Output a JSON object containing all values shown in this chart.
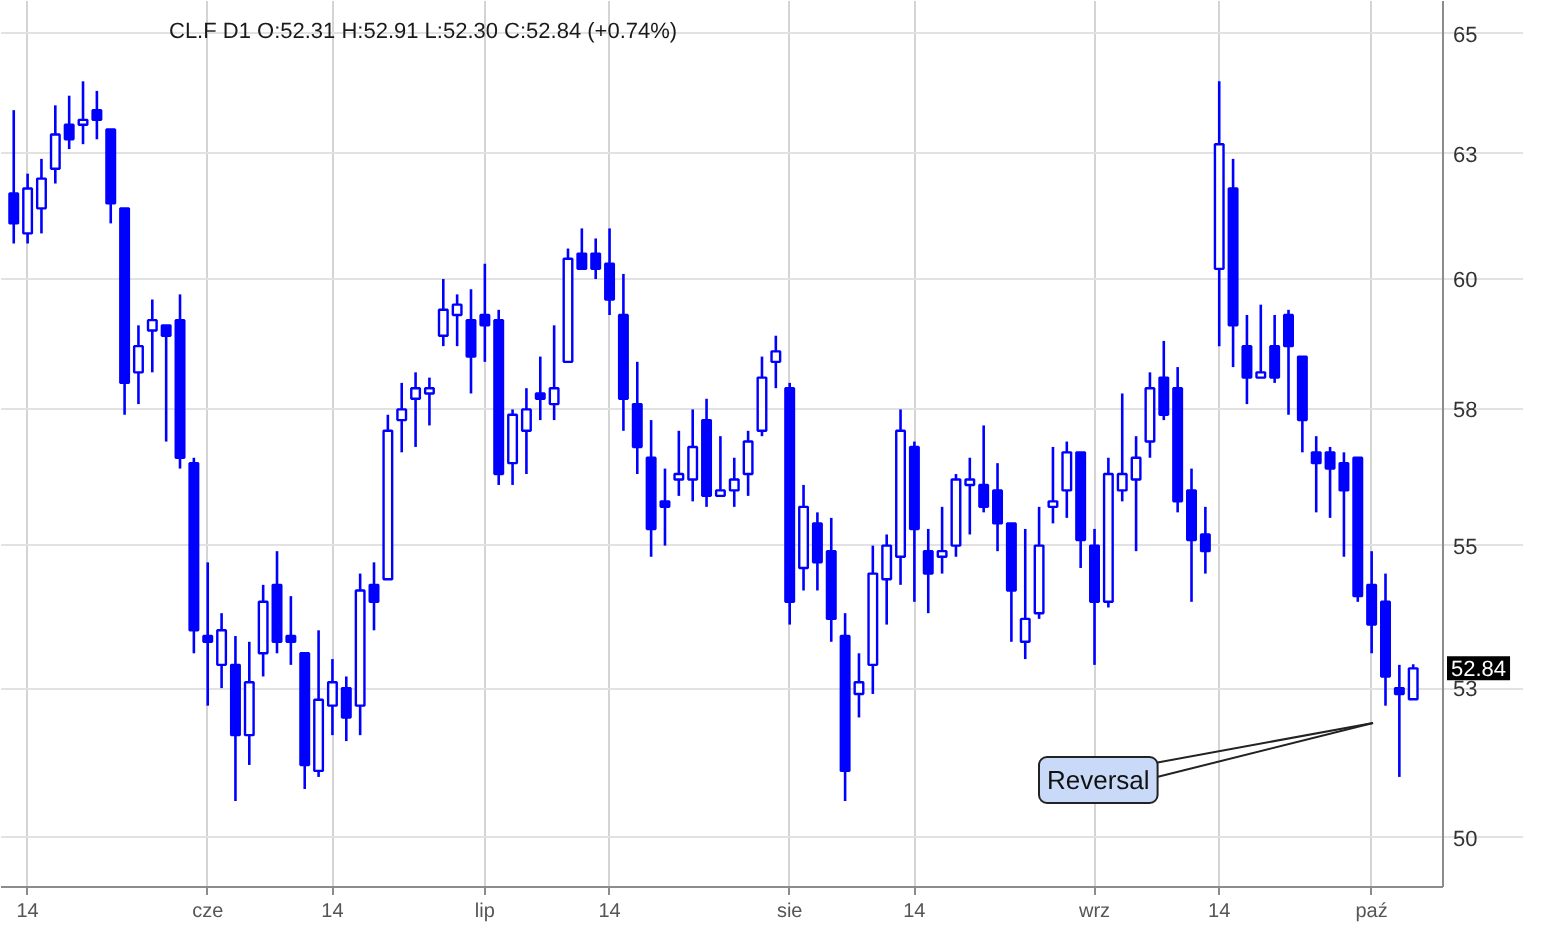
{
  "chart_data": {
    "type": "candlestick",
    "title": "CL.F  D1  O:52.31  H:52.91  L:52.30  C:52.84  (+0.74%)",
    "categories": [
      null,
      "14",
      null,
      null,
      null,
      null,
      null,
      null,
      null,
      null,
      null,
      null,
      null,
      null,
      "cze",
      null,
      null,
      null,
      null,
      null,
      null,
      null,
      null,
      "14",
      null,
      null,
      null,
      null,
      null,
      null,
      null,
      null,
      null,
      null,
      "lip",
      null,
      null,
      null,
      null,
      null,
      null,
      null,
      null,
      "14",
      null,
      null,
      null,
      null,
      null,
      null,
      null,
      null,
      null,
      null,
      null,
      null,
      "sie",
      null,
      null,
      null,
      null,
      null,
      null,
      null,
      null,
      "14",
      null,
      null,
      null,
      null,
      null,
      null,
      null,
      null,
      null,
      null,
      null,
      null,
      "wrz",
      null,
      null,
      null,
      null,
      null,
      null,
      null,
      null,
      "14",
      null,
      null,
      null,
      null,
      null,
      null,
      null,
      null,
      null,
      null,
      "paź",
      null,
      null,
      null
    ],
    "ohlc": [
      [
        61.7,
        63.4,
        60.7,
        61.1
      ],
      [
        60.9,
        62.1,
        60.7,
        61.8
      ],
      [
        61.4,
        62.4,
        60.9,
        62.0
      ],
      [
        62.2,
        63.5,
        61.9,
        62.9
      ],
      [
        63.1,
        63.7,
        62.6,
        62.8
      ],
      [
        63.1,
        64.0,
        62.7,
        63.2
      ],
      [
        63.4,
        63.8,
        62.8,
        63.2
      ],
      [
        63.0,
        63.0,
        61.1,
        61.5
      ],
      [
        61.4,
        61.4,
        57.4,
        58.0
      ],
      [
        58.2,
        59.1,
        57.6,
        58.7
      ],
      [
        59.0,
        59.6,
        58.2,
        59.2
      ],
      [
        59.1,
        59.1,
        56.9,
        58.9
      ],
      [
        59.2,
        59.7,
        56.4,
        56.6
      ],
      [
        56.5,
        56.6,
        53.1,
        53.5
      ],
      [
        53.4,
        54.7,
        52.2,
        53.3
      ],
      [
        52.9,
        53.8,
        52.5,
        53.5
      ],
      [
        52.9,
        53.4,
        50.6,
        51.7
      ],
      [
        51.7,
        53.3,
        51.2,
        52.6
      ],
      [
        53.1,
        54.3,
        52.7,
        54.0
      ],
      [
        54.3,
        54.9,
        53.1,
        53.3
      ],
      [
        53.4,
        54.1,
        52.9,
        53.3
      ],
      [
        53.1,
        53.1,
        50.8,
        51.2
      ],
      [
        51.1,
        53.5,
        51.0,
        52.3
      ],
      [
        52.2,
        53.0,
        51.7,
        52.6
      ],
      [
        52.5,
        52.7,
        51.6,
        52.0
      ],
      [
        52.2,
        54.5,
        51.7,
        54.2
      ],
      [
        54.3,
        54.7,
        53.5,
        54.0
      ],
      [
        54.4,
        57.4,
        54.4,
        57.1
      ],
      [
        57.3,
        58.0,
        56.7,
        57.5
      ],
      [
        57.7,
        58.2,
        56.8,
        57.9
      ],
      [
        57.8,
        58.1,
        57.2,
        57.9
      ],
      [
        58.9,
        60.0,
        58.7,
        59.4
      ],
      [
        59.3,
        59.7,
        58.7,
        59.5
      ],
      [
        59.2,
        59.8,
        57.8,
        58.5
      ],
      [
        59.3,
        60.3,
        58.4,
        59.1
      ],
      [
        59.2,
        59.4,
        56.1,
        56.3
      ],
      [
        56.5,
        57.5,
        56.1,
        57.4
      ],
      [
        57.1,
        57.9,
        56.3,
        57.5
      ],
      [
        57.8,
        58.5,
        57.3,
        57.7
      ],
      [
        57.6,
        59.1,
        57.3,
        57.9
      ],
      [
        58.4,
        60.6,
        58.4,
        60.4
      ],
      [
        60.5,
        61.0,
        60.2,
        60.2
      ],
      [
        60.5,
        60.8,
        60.0,
        60.2
      ],
      [
        60.3,
        61.0,
        59.3,
        59.6
      ],
      [
        59.3,
        60.1,
        57.1,
        57.7
      ],
      [
        57.6,
        58.4,
        56.3,
        56.8
      ],
      [
        56.6,
        57.3,
        54.8,
        55.3
      ],
      [
        55.8,
        56.4,
        55.0,
        55.7
      ],
      [
        56.2,
        57.1,
        55.9,
        56.3
      ],
      [
        56.2,
        57.5,
        55.8,
        56.8
      ],
      [
        57.3,
        57.7,
        55.7,
        55.9
      ],
      [
        55.9,
        57.0,
        55.9,
        56.0
      ],
      [
        56.0,
        56.6,
        55.7,
        56.2
      ],
      [
        56.3,
        57.1,
        55.9,
        56.9
      ],
      [
        57.1,
        58.5,
        57.0,
        58.1
      ],
      [
        58.4,
        58.9,
        57.9,
        58.6
      ],
      [
        57.9,
        58.0,
        53.6,
        54.0
      ],
      [
        54.6,
        56.1,
        54.2,
        55.7
      ],
      [
        55.4,
        55.6,
        54.2,
        54.7
      ],
      [
        54.9,
        55.5,
        53.3,
        53.7
      ],
      [
        53.4,
        53.8,
        50.6,
        51.1
      ],
      [
        52.4,
        53.1,
        52.0,
        52.6
      ],
      [
        52.9,
        55.0,
        52.4,
        54.5
      ],
      [
        54.4,
        55.2,
        53.6,
        55.0
      ],
      [
        54.8,
        57.5,
        54.3,
        57.1
      ],
      [
        56.8,
        56.9,
        54.0,
        55.3
      ],
      [
        54.9,
        55.3,
        53.8,
        54.5
      ],
      [
        54.8,
        55.7,
        54.5,
        54.9
      ],
      [
        55.0,
        56.3,
        54.8,
        56.2
      ],
      [
        56.1,
        56.6,
        55.2,
        56.2
      ],
      [
        56.1,
        57.2,
        55.6,
        55.7
      ],
      [
        56.0,
        56.5,
        54.9,
        55.4
      ],
      [
        55.4,
        55.4,
        53.3,
        54.2
      ],
      [
        53.3,
        55.3,
        53.0,
        53.7
      ],
      [
        53.8,
        55.7,
        53.7,
        55.0
      ],
      [
        55.7,
        56.8,
        55.4,
        55.8
      ],
      [
        56.0,
        56.9,
        55.5,
        56.7
      ],
      [
        56.7,
        56.7,
        54.6,
        55.1
      ],
      [
        55.0,
        55.3,
        52.9,
        54.0
      ],
      [
        54.0,
        56.6,
        53.9,
        56.3
      ],
      [
        56.0,
        57.8,
        55.8,
        56.3
      ],
      [
        56.2,
        57.0,
        54.9,
        56.6
      ],
      [
        56.9,
        58.2,
        56.6,
        57.9
      ],
      [
        58.1,
        58.8,
        57.3,
        57.4
      ],
      [
        57.9,
        58.3,
        55.6,
        55.8
      ],
      [
        56.0,
        56.4,
        54.0,
        55.1
      ],
      [
        55.2,
        55.7,
        54.5,
        54.9
      ],
      [
        60.2,
        64.0,
        58.7,
        62.7
      ],
      [
        61.8,
        62.4,
        58.3,
        59.1
      ],
      [
        58.7,
        59.3,
        57.6,
        58.1
      ],
      [
        58.1,
        59.5,
        58.1,
        58.2
      ],
      [
        58.7,
        59.3,
        58.0,
        58.1
      ],
      [
        59.3,
        59.4,
        57.4,
        58.7
      ],
      [
        58.5,
        58.5,
        56.7,
        57.3
      ],
      [
        56.7,
        57.0,
        55.6,
        56.5
      ],
      [
        56.7,
        56.8,
        55.5,
        56.4
      ],
      [
        56.5,
        56.7,
        54.8,
        56.0
      ],
      [
        56.6,
        56.6,
        54.0,
        54.1
      ],
      [
        54.3,
        54.9,
        53.1,
        53.6
      ],
      [
        54.0,
        54.5,
        52.2,
        52.7
      ],
      [
        52.5,
        52.9,
        51.0,
        52.4
      ],
      [
        52.31,
        52.91,
        52.3,
        52.84
      ]
    ],
    "color": "#0000ff",
    "log": true,
    "ylim": [
      49.2,
      65.7
    ],
    "yticks": [
      50,
      {
        "value": 52.5,
        "label": "53"
      },
      55,
      {
        "value": 57.5,
        "label": "58"
      },
      60,
      {
        "value": 62.5,
        "label": "63"
      },
      65
    ],
    "grid": true,
    "annotations": [
      "Reversal",
      {
        "text": "52.84",
        "y": 52.84
      }
    ]
  }
}
